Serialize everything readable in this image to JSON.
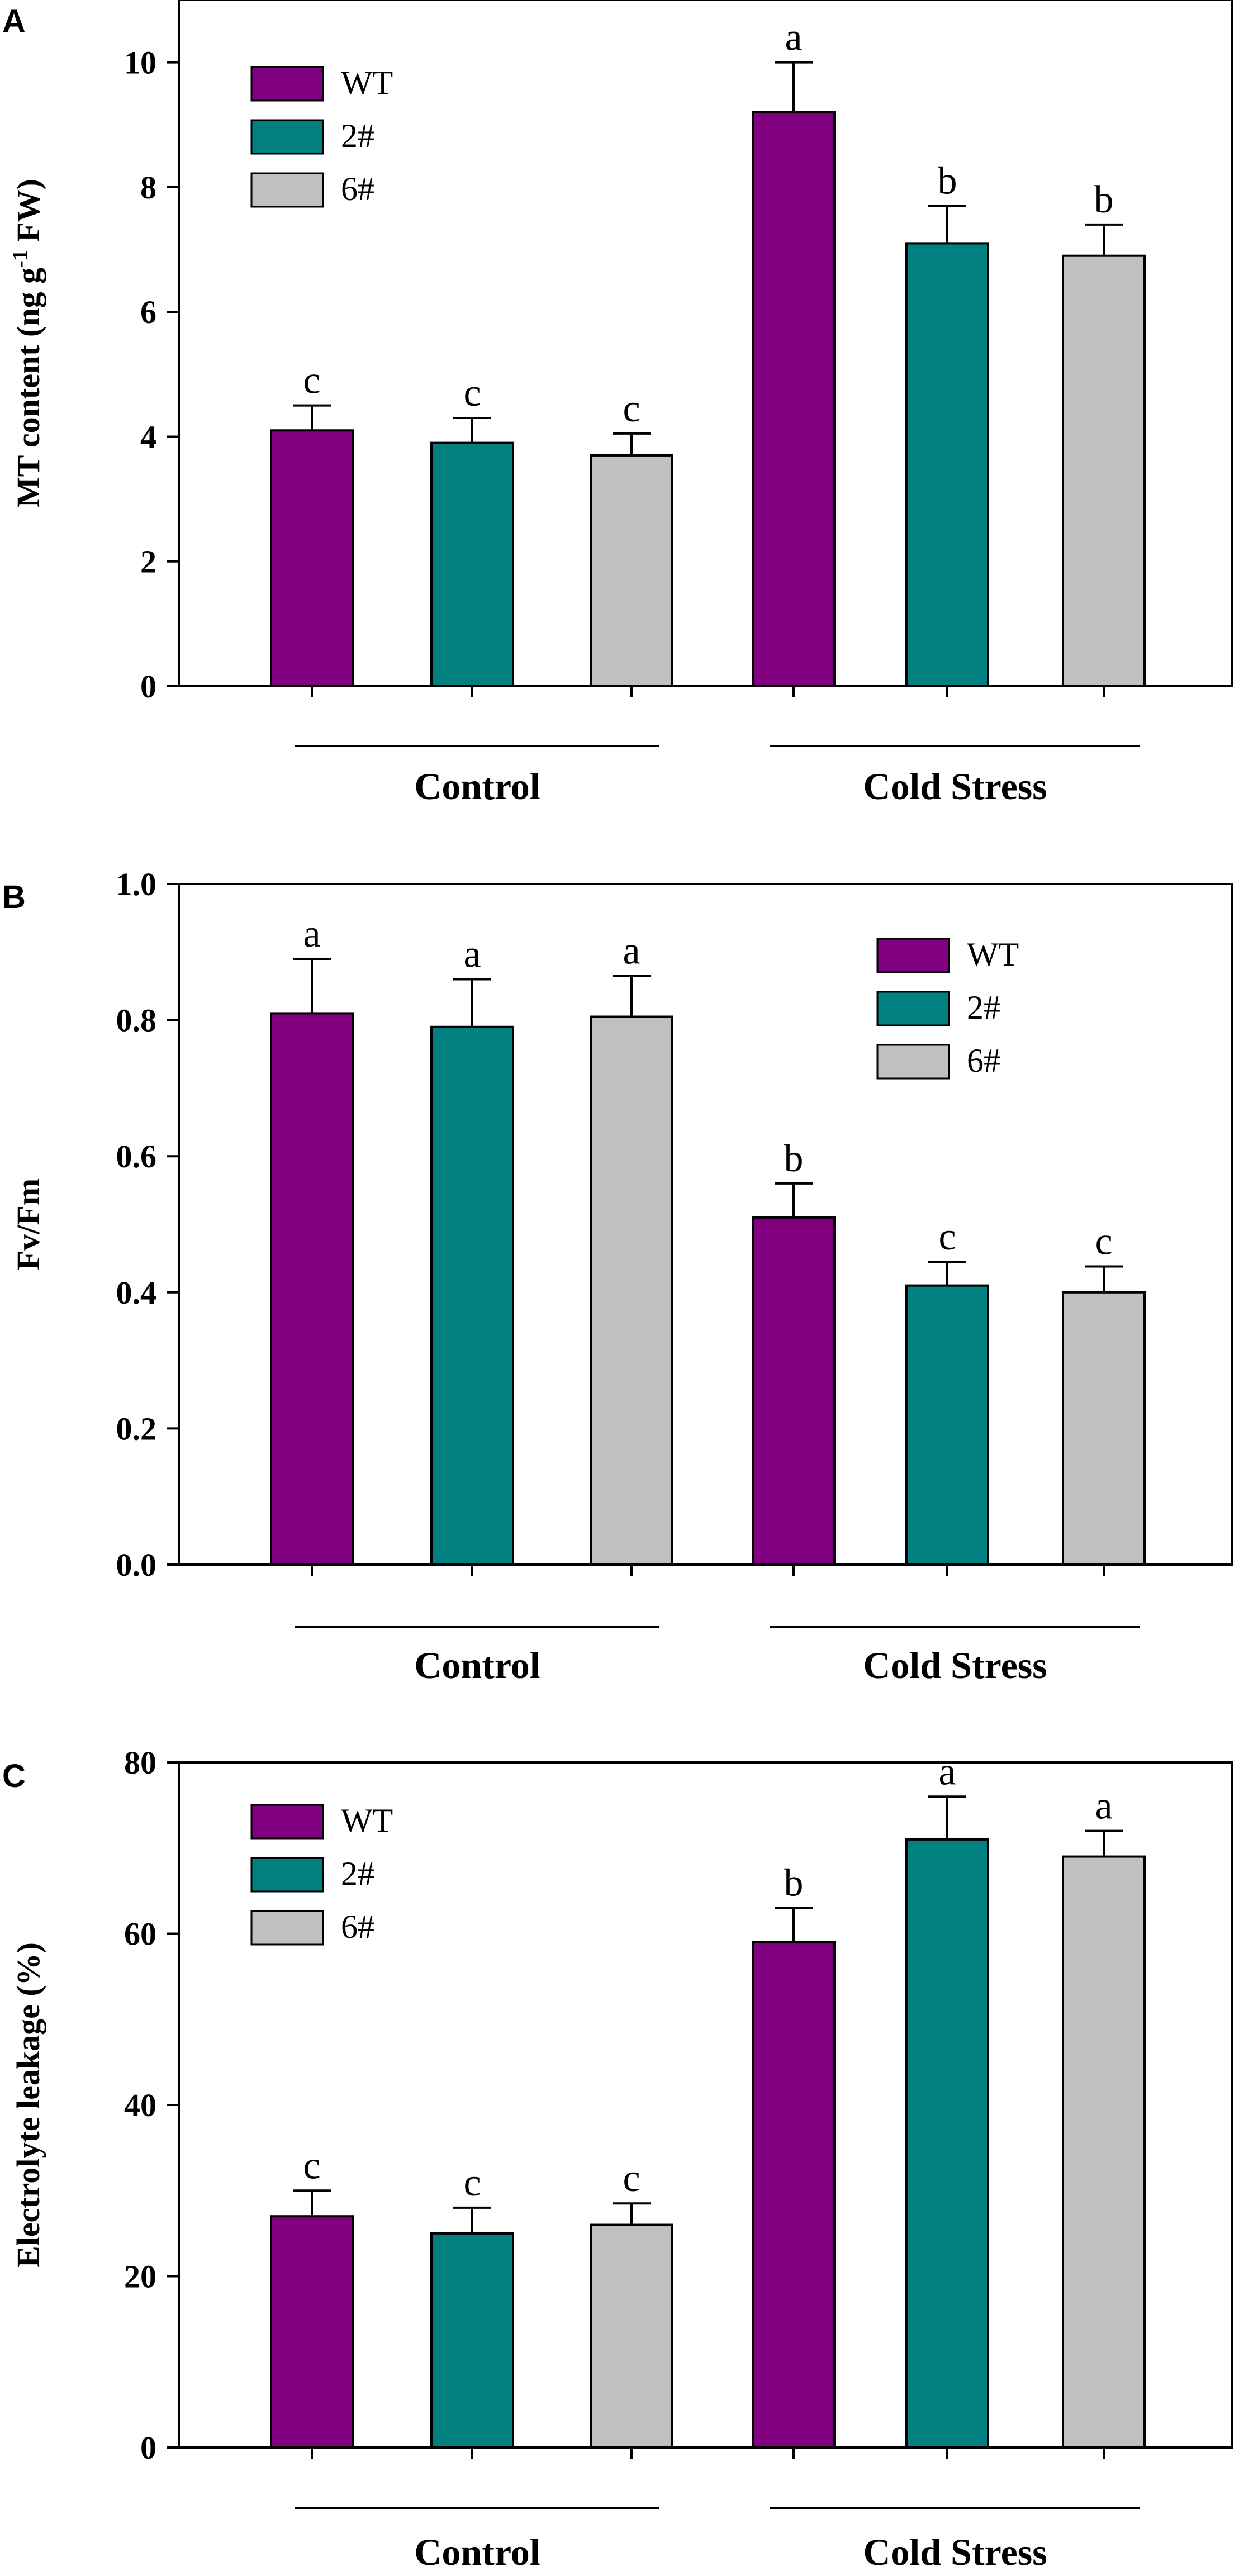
{
  "figure_title": "Three-panel bar chart: MT content, Fv/Fm and electrolyte leakage of WT, 2# and 6# plants under control and cold stress",
  "colors": {
    "WT": "#800080",
    "2#": "#008080",
    "6#": "#C0C0C0",
    "frame": "#000000",
    "background": "#ffffff"
  },
  "chart_data": [
    {
      "type": "bar",
      "panel": "A",
      "title": "",
      "xlabel": "",
      "ylabel_parts": {
        "main": "MT content (ng g",
        "sup": "-1",
        "end": " FW)"
      },
      "ylim": [
        0,
        11
      ],
      "yticks": [
        0,
        2,
        4,
        6,
        8,
        10
      ],
      "tick_labels": [
        "0",
        "2",
        "4",
        "6",
        "8",
        "10"
      ],
      "groups": [
        "Control",
        "Cold Stress"
      ],
      "legend": {
        "entries": [
          "WT",
          "2#",
          "6#"
        ],
        "placement": "top-left"
      },
      "series": [
        {
          "name": "WT",
          "values": [
            4.1,
            9.2
          ],
          "errors": [
            0.4,
            0.8
          ],
          "letters": [
            "c",
            "a"
          ]
        },
        {
          "name": "2#",
          "values": [
            3.9,
            7.1
          ],
          "errors": [
            0.4,
            0.6
          ],
          "letters": [
            "c",
            "b"
          ]
        },
        {
          "name": "6#",
          "values": [
            3.7,
            6.9
          ],
          "errors": [
            0.35,
            0.5
          ],
          "letters": [
            "c",
            "b"
          ]
        }
      ]
    },
    {
      "type": "bar",
      "panel": "B",
      "title": "",
      "xlabel": "",
      "ylabel_parts": {
        "main": "Fv/Fm",
        "sup": "",
        "end": ""
      },
      "ylim": [
        0,
        1.0
      ],
      "yticks": [
        0,
        0.2,
        0.4,
        0.6,
        0.8,
        1.0
      ],
      "tick_labels": [
        "0.0",
        "0.2",
        "0.4",
        "0.6",
        "0.8",
        "1.0"
      ],
      "groups": [
        "Control",
        "Cold Stress"
      ],
      "legend": {
        "entries": [
          "WT",
          "2#",
          "6#"
        ],
        "placement": "top-right"
      },
      "series": [
        {
          "name": "WT",
          "values": [
            0.81,
            0.51
          ],
          "errors": [
            0.08,
            0.05
          ],
          "letters": [
            "a",
            "b"
          ]
        },
        {
          "name": "2#",
          "values": [
            0.79,
            0.41
          ],
          "errors": [
            0.07,
            0.035
          ],
          "letters": [
            "a",
            "c"
          ]
        },
        {
          "name": "6#",
          "values": [
            0.805,
            0.4
          ],
          "errors": [
            0.06,
            0.038
          ],
          "letters": [
            "a",
            "c"
          ]
        }
      ]
    },
    {
      "type": "bar",
      "panel": "C",
      "title": "",
      "xlabel": "",
      "ylabel_parts": {
        "main": "Electrolyte leakage (%)",
        "sup": "",
        "end": ""
      },
      "ylim": [
        0,
        80
      ],
      "yticks": [
        0,
        20,
        40,
        60,
        80
      ],
      "tick_labels": [
        "0",
        "20",
        "40",
        "60",
        "80"
      ],
      "groups": [
        "Control",
        "Cold Stress"
      ],
      "legend": {
        "entries": [
          "WT",
          "2#",
          "6#"
        ],
        "placement": "top-left"
      },
      "series": [
        {
          "name": "WT",
          "values": [
            27,
            59
          ],
          "errors": [
            3,
            4
          ],
          "letters": [
            "c",
            "b"
          ]
        },
        {
          "name": "2#",
          "values": [
            25,
            71
          ],
          "errors": [
            3,
            5
          ],
          "letters": [
            "c",
            "a"
          ]
        },
        {
          "name": "6#",
          "values": [
            26,
            69
          ],
          "errors": [
            2.5,
            3
          ],
          "letters": [
            "c",
            "a"
          ]
        }
      ]
    }
  ]
}
